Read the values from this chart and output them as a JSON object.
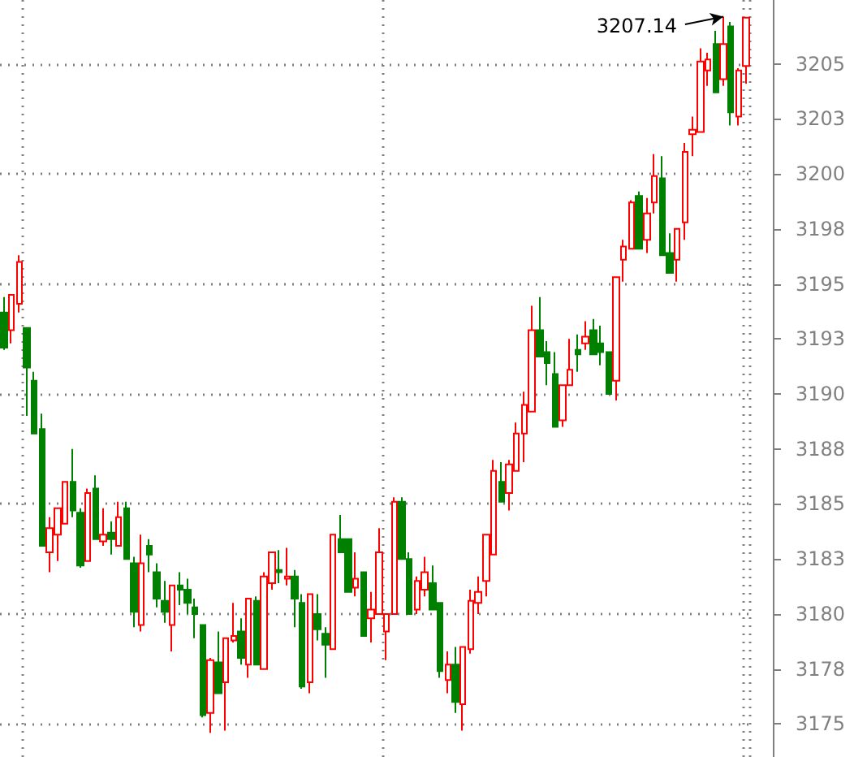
{
  "chart_data": {
    "type": "candlestick",
    "categories": [
      null,
      null,
      null,
      null,
      null,
      null,
      null,
      null,
      null,
      null,
      null,
      null,
      null,
      null,
      null,
      null,
      null,
      null,
      null,
      null,
      null,
      null,
      null,
      null,
      null,
      null,
      null,
      null,
      null,
      null,
      null,
      null,
      null,
      null,
      null,
      null,
      null,
      null,
      null,
      null,
      null,
      null,
      null,
      null,
      null,
      null,
      null,
      null,
      null,
      null,
      null,
      null,
      null,
      null,
      null,
      null,
      null,
      null,
      null,
      null,
      null,
      null,
      null,
      null,
      null,
      null,
      null,
      null,
      null,
      null,
      null,
      null,
      null,
      null,
      null,
      null,
      null,
      null,
      null,
      null,
      null,
      null,
      null,
      null,
      null,
      null,
      null,
      null,
      null,
      null,
      null,
      null,
      null,
      null,
      null,
      null,
      null,
      null
    ],
    "ohlc": [
      [
        3193.7,
        3194.4,
        3192.0,
        3192.1
      ],
      [
        3192.9,
        3194.5,
        3192.3,
        3194.5
      ],
      [
        3194.1,
        3196.3,
        3193.7,
        3196.0
      ],
      [
        3193.0,
        3193.0,
        3189.0,
        3191.2
      ],
      [
        3190.6,
        3191.0,
        3188.2,
        3188.2
      ],
      [
        3188.4,
        3189.1,
        3183.1,
        3183.1
      ],
      [
        3182.8,
        3184.4,
        3181.9,
        3183.9
      ],
      [
        3183.6,
        3184.8,
        3182.4,
        3184.8
      ],
      [
        3184.1,
        3186.0,
        3184.1,
        3186.0
      ],
      [
        3186.0,
        3187.5,
        3184.4,
        3184.7
      ],
      [
        3184.6,
        3184.8,
        3182.1,
        3182.2
      ],
      [
        3182.4,
        3185.7,
        3182.4,
        3185.5
      ],
      [
        3185.7,
        3186.3,
        3183.4,
        3183.4
      ],
      [
        3183.3,
        3184.8,
        3183.1,
        3183.6
      ],
      [
        3183.7,
        3184.2,
        3182.7,
        3183.4
      ],
      [
        3183.1,
        3185.1,
        3183.1,
        3184.4
      ],
      [
        3184.8,
        3185.1,
        3182.5,
        3182.5
      ],
      [
        3182.3,
        3182.6,
        3179.4,
        3180.1
      ],
      [
        3179.5,
        3183.6,
        3179.2,
        3182.3
      ],
      [
        3183.1,
        3183.4,
        3181.9,
        3182.7
      ],
      [
        3181.9,
        3182.3,
        3180.3,
        3180.7
      ],
      [
        3180.6,
        3181.5,
        3179.6,
        3180.1
      ],
      [
        3179.5,
        3181.3,
        3178.3,
        3181.3
      ],
      [
        3181.3,
        3181.9,
        3180.4,
        3181.1
      ],
      [
        3181.1,
        3181.6,
        3180.0,
        3180.5
      ],
      [
        3180.3,
        3180.7,
        3178.9,
        3180.0
      ],
      [
        3179.5,
        3179.5,
        3175.3,
        3175.4
      ],
      [
        3175.5,
        3178.0,
        3174.6,
        3177.9
      ],
      [
        3177.8,
        3179.2,
        3176.4,
        3176.4
      ],
      [
        3176.9,
        3178.9,
        3174.7,
        3178.9
      ],
      [
        3178.8,
        3180.5,
        3178.7,
        3179.0
      ],
      [
        3179.2,
        3179.8,
        3177.7,
        3178.0
      ],
      [
        3177.7,
        3180.7,
        3177.1,
        3180.7
      ],
      [
        3180.6,
        3180.8,
        3177.7,
        3177.7
      ],
      [
        3177.5,
        3181.9,
        3177.5,
        3181.7
      ],
      [
        3181.4,
        3182.8,
        3181.1,
        3182.8
      ],
      [
        3182.0,
        3182.9,
        3181.4,
        3181.9
      ],
      [
        3181.6,
        3183.0,
        3181.3,
        3181.7
      ],
      [
        3181.7,
        3182.0,
        3179.4,
        3180.7
      ],
      [
        3180.5,
        3180.9,
        3176.6,
        3176.7
      ],
      [
        3176.9,
        3180.9,
        3176.4,
        3180.9
      ],
      [
        3180.0,
        3180.9,
        3178.8,
        3179.3
      ],
      [
        3179.1,
        3179.4,
        3177.1,
        3178.6
      ],
      [
        3178.4,
        3183.6,
        3178.4,
        3183.6
      ],
      [
        3183.4,
        3184.5,
        3182.8,
        3182.8
      ],
      [
        3183.4,
        3183.4,
        3181.0,
        3181.0
      ],
      [
        3181.2,
        3182.8,
        3180.8,
        3181.6
      ],
      [
        3181.9,
        3181.9,
        3179.0,
        3179.0
      ],
      [
        3179.8,
        3181.0,
        3178.7,
        3180.2
      ],
      [
        3180.0,
        3183.9,
        3180.0,
        3182.8
      ],
      [
        3179.2,
        3180.0,
        3177.9,
        3180.0
      ],
      [
        3180.0,
        3185.3,
        3180.0,
        3185.1
      ],
      [
        3185.1,
        3185.3,
        3182.5,
        3182.5
      ],
      [
        3182.5,
        3182.8,
        3180.0,
        3180.0
      ],
      [
        3180.2,
        3181.7,
        3180.0,
        3181.5
      ],
      [
        3181.1,
        3182.6,
        3180.8,
        3181.9
      ],
      [
        3181.4,
        3182.2,
        3180.2,
        3180.2
      ],
      [
        3180.5,
        3180.5,
        3177.1,
        3177.4
      ],
      [
        3177.0,
        3178.3,
        3176.4,
        3177.7
      ],
      [
        3177.7,
        3178.5,
        3175.5,
        3176.0
      ],
      [
        3175.9,
        3178.5,
        3174.7,
        3178.5
      ],
      [
        3178.4,
        3181.1,
        3178.2,
        3180.6
      ],
      [
        3180.5,
        3181.7,
        3180.0,
        3181.0
      ],
      [
        3181.5,
        3183.6,
        3180.8,
        3183.6
      ],
      [
        3182.7,
        3187.0,
        3182.7,
        3186.5
      ],
      [
        3186.0,
        3186.9,
        3185.1,
        3185.1
      ],
      [
        3185.5,
        3187.0,
        3184.7,
        3186.8
      ],
      [
        3186.5,
        3188.7,
        3186.5,
        3188.2
      ],
      [
        3188.2,
        3190.1,
        3186.9,
        3189.5
      ],
      [
        3189.2,
        3194.0,
        3189.2,
        3192.9
      ],
      [
        3192.9,
        3194.4,
        3191.7,
        3191.7
      ],
      [
        3191.9,
        3192.4,
        3190.4,
        3191.4
      ],
      [
        3190.9,
        3191.9,
        3188.5,
        3188.5
      ],
      [
        3188.8,
        3190.4,
        3188.5,
        3190.4
      ],
      [
        3190.4,
        3192.5,
        3190.4,
        3191.1
      ],
      [
        3192.0,
        3192.7,
        3191.0,
        3191.8
      ],
      [
        3192.3,
        3193.3,
        3192.0,
        3192.6
      ],
      [
        3192.9,
        3193.4,
        3191.8,
        3191.8
      ],
      [
        3192.3,
        3193.1,
        3191.3,
        3191.9
      ],
      [
        3191.9,
        3191.9,
        3190.0,
        3190.0
      ],
      [
        3190.6,
        3195.3,
        3189.7,
        3195.3
      ],
      [
        3196.1,
        3197.0,
        3195.1,
        3196.7
      ],
      [
        3196.6,
        3198.8,
        3196.6,
        3198.7
      ],
      [
        3199.0,
        3199.2,
        3196.6,
        3196.6
      ],
      [
        3197.0,
        3198.9,
        3196.4,
        3198.2
      ],
      [
        3198.7,
        3200.9,
        3198.2,
        3199.9
      ],
      [
        3199.8,
        3200.8,
        3196.3,
        3196.3
      ],
      [
        3196.4,
        3197.3,
        3195.5,
        3195.5
      ],
      [
        3196.1,
        3197.5,
        3195.1,
        3197.5
      ],
      [
        3197.8,
        3201.4,
        3197.0,
        3201.0
      ],
      [
        3201.8,
        3202.6,
        3200.8,
        3202.0
      ],
      [
        3201.9,
        3205.7,
        3201.9,
        3205.1
      ],
      [
        3204.7,
        3205.5,
        3204.0,
        3205.2
      ],
      [
        3205.9,
        3206.5,
        3203.7,
        3203.7
      ],
      [
        3204.3,
        3207.14,
        3204.0,
        3205.9
      ],
      [
        3206.7,
        3206.9,
        3202.2,
        3202.8
      ],
      [
        3202.6,
        3204.8,
        3202.2,
        3204.7
      ],
      [
        3204.9,
        3207.1,
        3204.1,
        3207.1
      ]
    ],
    "colors": [
      "#008000",
      "#ff0000",
      "#ff0000",
      "#008000",
      "#008000",
      "#008000",
      "#ff0000",
      "#ff0000",
      "#ff0000",
      "#008000",
      "#008000",
      "#ff0000",
      "#008000",
      "#ff0000",
      "#008000",
      "#ff0000",
      "#008000",
      "#008000",
      "#ff0000",
      "#008000",
      "#008000",
      "#008000",
      "#ff0000",
      "#008000",
      "#008000",
      "#008000",
      "#008000",
      "#ff0000",
      "#008000",
      "#ff0000",
      "#ff0000",
      "#008000",
      "#ff0000",
      "#008000",
      "#ff0000",
      "#ff0000",
      "#008000",
      "#ff0000",
      "#008000",
      "#008000",
      "#ff0000",
      "#008000",
      "#008000",
      "#ff0000",
      "#008000",
      "#008000",
      "#ff0000",
      "#008000",
      "#ff0000",
      "#ff0000",
      "#ff0000",
      "#ff0000",
      "#008000",
      "#008000",
      "#ff0000",
      "#ff0000",
      "#008000",
      "#008000",
      "#ff0000",
      "#008000",
      "#ff0000",
      "#ff0000",
      "#ff0000",
      "#ff0000",
      "#ff0000",
      "#008000",
      "#ff0000",
      "#ff0000",
      "#ff0000",
      "#ff0000",
      "#008000",
      "#008000",
      "#008000",
      "#ff0000",
      "#ff0000",
      "#008000",
      "#ff0000",
      "#008000",
      "#008000",
      "#008000",
      "#ff0000",
      "#ff0000",
      "#ff0000",
      "#008000",
      "#ff0000",
      "#ff0000",
      "#008000",
      "#008000",
      "#ff0000",
      "#ff0000",
      "#ff0000",
      "#ff0000",
      "#ff0000",
      "#008000",
      "#ff0000",
      "#008000",
      "#ff0000",
      "#ff0000"
    ],
    "ylim": [
      3173.5,
      3207.9
    ],
    "yticks": [
      3175,
      {
        "value": 3177.5,
        "label": "3178"
      },
      3180,
      {
        "value": 3182.5,
        "label": "3183"
      },
      3185,
      {
        "value": 3187.5,
        "label": "3188"
      },
      3190,
      {
        "value": 3192.5,
        "label": "3193"
      },
      3195,
      {
        "value": 3197.5,
        "label": "3198"
      },
      3200,
      {
        "value": 3202.5,
        "label": "3203"
      },
      3205
    ],
    "grid": true,
    "annotations": [
      "3207.14"
    ]
  }
}
